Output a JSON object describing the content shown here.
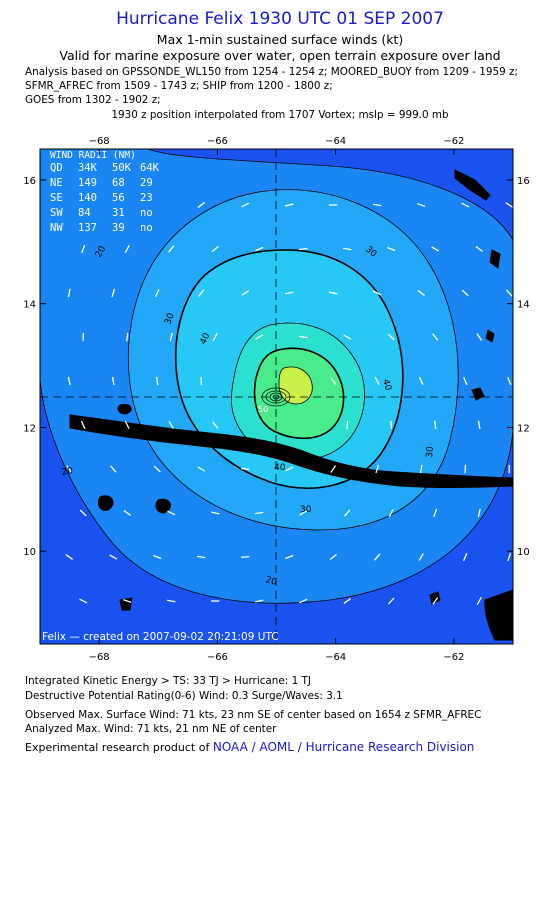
{
  "header": {
    "title": "Hurricane Felix 1930 UTC 01 SEP 2007",
    "subtitle1": "Max 1-min sustained surface winds (kt)",
    "subtitle2": "Valid for marine exposure over water, open terrain exposure over land",
    "analysis_lines": [
      "Analysis based on  GPSSONDE_WL150 from 1254 - 1254 z;  MOORED_BUOY from 1209 - 1959 z;",
      "SFMR_AFREC from 1509 - 1743 z;  SHIP from 1200 - 1800 z;",
      "GOES from 1302 - 1902 z;"
    ],
    "interpolation": "1930 z position interpolated from 1707 Vortex; mslp = 999.0 mb"
  },
  "map": {
    "lon_ticks": [
      "−68",
      "−66",
      "−64",
      "−62"
    ],
    "lat_ticks": [
      "16",
      "14",
      "12",
      "10"
    ],
    "lon_range": [
      -69,
      -61
    ],
    "lat_range": [
      8.5,
      16.5
    ],
    "center": {
      "lon": -65.0,
      "lat": 12.45
    },
    "contour_labels": [
      "20",
      "30",
      "40",
      "30",
      "40",
      "30",
      "20",
      "20",
      "50"
    ],
    "credit": "Felix — created on 2007-09-02 20:21:09 UTC",
    "colors": {
      "outer": "#1a52f0",
      "level20": "#1a86f4",
      "level30": "#23a8f7",
      "level40": "#27c8f5",
      "level50": "#2ce0d0",
      "level60": "#48ec8c",
      "level70": "#c8f048",
      "land": "#000000"
    },
    "wind_radii": {
      "title": "WIND RADII (NM)",
      "header": [
        "QD",
        "34K",
        "50K",
        "64K"
      ],
      "rows": [
        [
          "NE",
          "149",
          "68",
          "29"
        ],
        [
          "SE",
          "140",
          "56",
          "23"
        ],
        [
          "SW",
          "84",
          "31",
          "no"
        ],
        [
          "NW",
          "137",
          "39",
          "no"
        ]
      ]
    }
  },
  "footer": {
    "ike": "Integrated Kinetic Energy > TS: 33 TJ   > Hurricane: 1 TJ",
    "dpr": "Destructive Potential Rating(0-6)   Wind: 0.3 Surge/Waves: 3.1",
    "obs_max": "Observed Max. Surface Wind: 71 kts, 23 nm SE of center based on 1654 z SFMR_AFREC",
    "analyzed_max": "Analyzed Max. Wind: 71 kts, 21 nm NE of center",
    "product_prefix": "Experimental research product of ",
    "product_org": "NOAA / AOML / Hurricane Research Division"
  }
}
